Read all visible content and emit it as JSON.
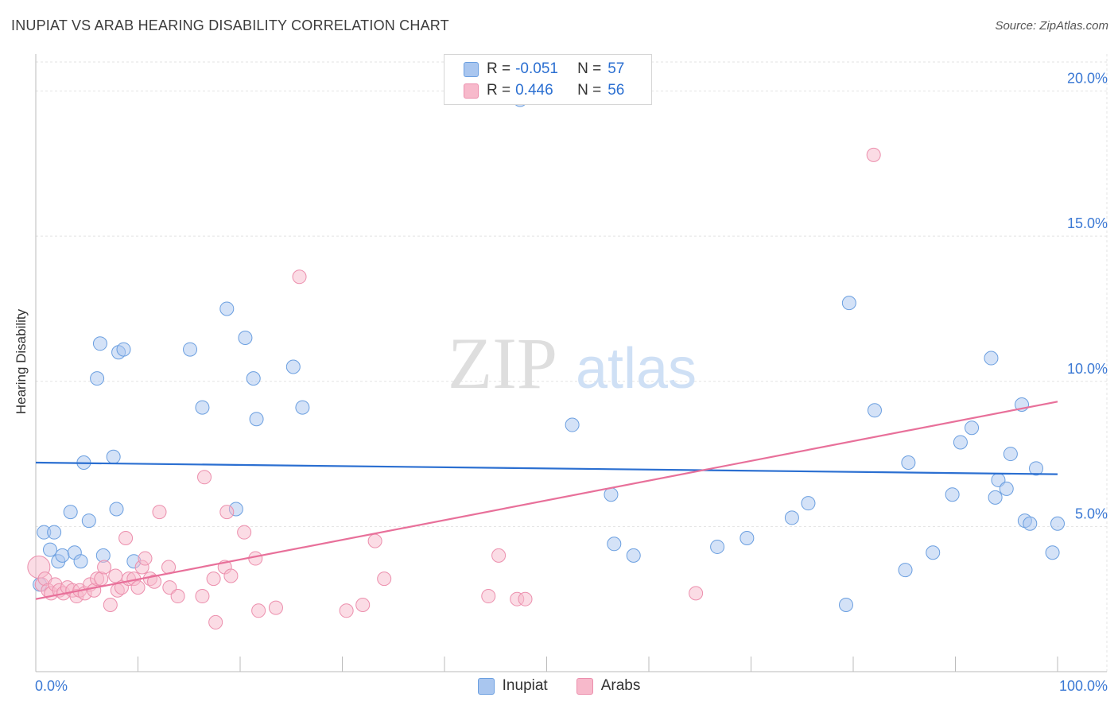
{
  "title": "INUPIAT VS ARAB HEARING DISABILITY CORRELATION CHART",
  "source": "Source: ZipAtlas.com",
  "watermark": {
    "zip": "ZIP",
    "atlas": "atlas"
  },
  "stats": [
    {
      "r_label": "R =",
      "r_value": "-0.051",
      "n_label": "N =",
      "n_value": "57",
      "color": "#a9c6ef",
      "border": "#6b9fe0"
    },
    {
      "r_label": "R =",
      "r_value": "0.446",
      "n_label": "N =",
      "n_value": "56",
      "color": "#f7b9cb",
      "border": "#ec8fad"
    }
  ],
  "legend": [
    {
      "label": "Inupiat",
      "color": "#a9c6ef",
      "border": "#6b9fe0"
    },
    {
      "label": "Arabs",
      "color": "#f7b9cb",
      "border": "#ec8fad"
    }
  ],
  "chart_data": {
    "type": "scatter",
    "title": "INUPIAT VS ARAB HEARING DISABILITY CORRELATION CHART",
    "xlabel": "",
    "ylabel": "Hearing Disability",
    "xlim": [
      0,
      100
    ],
    "ylim": [
      0,
      21
    ],
    "x_tick_labels": [
      "0.0%",
      "100.0%"
    ],
    "y_ticks": [
      5,
      10,
      15,
      20
    ],
    "y_tick_labels": [
      "5.0%",
      "10.0%",
      "15.0%",
      "20.0%"
    ],
    "grid": true,
    "series": [
      {
        "name": "Inupiat",
        "color": "#a9c6ef",
        "stroke": "#6b9fe0",
        "line_color": "#2b6fd1",
        "trend": {
          "x": [
            0,
            100
          ],
          "y": [
            7.2,
            6.8
          ]
        },
        "points": [
          [
            0.4,
            3.0
          ],
          [
            0.8,
            4.8
          ],
          [
            1.4,
            4.2
          ],
          [
            1.8,
            4.8
          ],
          [
            2.2,
            3.8
          ],
          [
            2.6,
            4.0
          ],
          [
            3.4,
            5.5
          ],
          [
            3.8,
            4.1
          ],
          [
            4.4,
            3.8
          ],
          [
            4.7,
            7.2
          ],
          [
            5.2,
            5.2
          ],
          [
            6.0,
            10.1
          ],
          [
            6.3,
            11.3
          ],
          [
            6.6,
            4.0
          ],
          [
            7.6,
            7.4
          ],
          [
            7.9,
            5.6
          ],
          [
            8.1,
            11.0
          ],
          [
            8.6,
            11.1
          ],
          [
            9.6,
            3.8
          ],
          [
            15.1,
            11.1
          ],
          [
            16.3,
            9.1
          ],
          [
            18.7,
            12.5
          ],
          [
            19.6,
            5.6
          ],
          [
            20.5,
            11.5
          ],
          [
            21.3,
            10.1
          ],
          [
            21.6,
            8.7
          ],
          [
            25.2,
            10.5
          ],
          [
            26.1,
            9.1
          ],
          [
            47.4,
            19.7
          ],
          [
            52.5,
            8.5
          ],
          [
            56.3,
            6.1
          ],
          [
            56.6,
            4.4
          ],
          [
            58.5,
            4.0
          ],
          [
            66.7,
            4.3
          ],
          [
            69.6,
            4.6
          ],
          [
            74.0,
            5.3
          ],
          [
            75.6,
            5.8
          ],
          [
            79.3,
            2.3
          ],
          [
            79.6,
            12.7
          ],
          [
            82.1,
            9.0
          ],
          [
            85.1,
            3.5
          ],
          [
            85.4,
            7.2
          ],
          [
            87.8,
            4.1
          ],
          [
            89.7,
            6.1
          ],
          [
            90.5,
            7.9
          ],
          [
            91.6,
            8.4
          ],
          [
            93.5,
            10.8
          ],
          [
            93.9,
            6.0
          ],
          [
            94.2,
            6.6
          ],
          [
            95.0,
            6.3
          ],
          [
            95.4,
            7.5
          ],
          [
            96.5,
            9.2
          ],
          [
            96.8,
            5.2
          ],
          [
            97.3,
            5.1
          ],
          [
            97.9,
            7.0
          ],
          [
            99.5,
            4.1
          ],
          [
            100.0,
            5.1
          ]
        ]
      },
      {
        "name": "Arabs",
        "color": "#f7b9cb",
        "stroke": "#ec8fad",
        "line_color": "#e8709a",
        "trend": {
          "x": [
            0,
            100
          ],
          "y": [
            2.5,
            9.3
          ]
        },
        "points": [
          [
            0.3,
            3.6
          ],
          [
            0.6,
            3.0
          ],
          [
            0.9,
            3.2
          ],
          [
            1.2,
            2.8
          ],
          [
            1.5,
            2.7
          ],
          [
            1.9,
            3.0
          ],
          [
            2.3,
            2.8
          ],
          [
            2.7,
            2.7
          ],
          [
            3.1,
            2.9
          ],
          [
            3.6,
            2.8
          ],
          [
            4.0,
            2.6
          ],
          [
            4.3,
            2.8
          ],
          [
            4.8,
            2.7
          ],
          [
            5.3,
            3.0
          ],
          [
            5.7,
            2.8
          ],
          [
            6.0,
            3.2
          ],
          [
            6.4,
            3.2
          ],
          [
            6.7,
            3.6
          ],
          [
            7.3,
            2.3
          ],
          [
            7.8,
            3.3
          ],
          [
            8.0,
            2.8
          ],
          [
            8.4,
            2.9
          ],
          [
            8.8,
            4.6
          ],
          [
            9.1,
            3.2
          ],
          [
            9.6,
            3.2
          ],
          [
            10.0,
            2.9
          ],
          [
            10.4,
            3.6
          ],
          [
            10.7,
            3.9
          ],
          [
            11.2,
            3.2
          ],
          [
            11.6,
            3.1
          ],
          [
            12.1,
            5.5
          ],
          [
            13.0,
            3.6
          ],
          [
            13.1,
            2.9
          ],
          [
            13.9,
            2.6
          ],
          [
            16.3,
            2.6
          ],
          [
            16.5,
            6.7
          ],
          [
            17.4,
            3.2
          ],
          [
            17.6,
            1.7
          ],
          [
            18.5,
            3.6
          ],
          [
            18.7,
            5.5
          ],
          [
            19.1,
            3.3
          ],
          [
            20.4,
            4.8
          ],
          [
            21.5,
            3.9
          ],
          [
            21.8,
            2.1
          ],
          [
            23.5,
            2.2
          ],
          [
            25.8,
            13.6
          ],
          [
            30.4,
            2.1
          ],
          [
            32.0,
            2.3
          ],
          [
            33.2,
            4.5
          ],
          [
            34.1,
            3.2
          ],
          [
            44.3,
            2.6
          ],
          [
            45.3,
            4.0
          ],
          [
            47.1,
            2.5
          ],
          [
            47.9,
            2.5
          ],
          [
            64.6,
            2.7
          ],
          [
            82.0,
            17.8
          ]
        ]
      }
    ]
  }
}
